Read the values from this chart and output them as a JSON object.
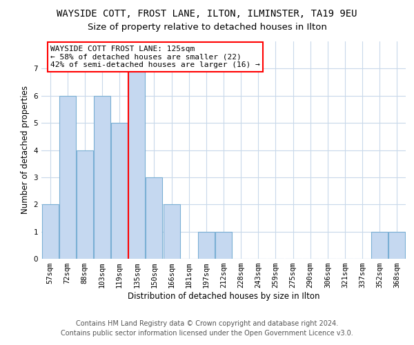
{
  "title": "WAYSIDE COTT, FROST LANE, ILTON, ILMINSTER, TA19 9EU",
  "subtitle": "Size of property relative to detached houses in Ilton",
  "xlabel": "Distribution of detached houses by size in Ilton",
  "ylabel": "Number of detached properties",
  "categories": [
    "57sqm",
    "72sqm",
    "88sqm",
    "103sqm",
    "119sqm",
    "135sqm",
    "150sqm",
    "166sqm",
    "181sqm",
    "197sqm",
    "212sqm",
    "228sqm",
    "243sqm",
    "259sqm",
    "275sqm",
    "290sqm",
    "306sqm",
    "321sqm",
    "337sqm",
    "352sqm",
    "368sqm"
  ],
  "values": [
    2,
    6,
    4,
    6,
    5,
    7,
    3,
    2,
    0,
    1,
    1,
    0,
    0,
    0,
    0,
    0,
    0,
    0,
    0,
    1,
    1
  ],
  "bar_color": "#c5d8f0",
  "bar_edge_color": "#7aafd4",
  "subject_line_color": "red",
  "subject_line_xindex": 4,
  "annotation_text": "WAYSIDE COTT FROST LANE: 125sqm\n← 58% of detached houses are smaller (22)\n42% of semi-detached houses are larger (16) →",
  "annotation_box_color": "white",
  "annotation_box_edge_color": "red",
  "ylim": [
    0,
    8
  ],
  "yticks": [
    0,
    1,
    2,
    3,
    4,
    5,
    6,
    7,
    8
  ],
  "footer": "Contains HM Land Registry data © Crown copyright and database right 2024.\nContains public sector information licensed under the Open Government Licence v3.0.",
  "bg_color": "white",
  "grid_color": "#c8d8ea",
  "title_fontsize": 10,
  "subtitle_fontsize": 9.5,
  "axis_label_fontsize": 8.5,
  "tick_fontsize": 7.5,
  "annotation_fontsize": 8,
  "footer_fontsize": 7
}
